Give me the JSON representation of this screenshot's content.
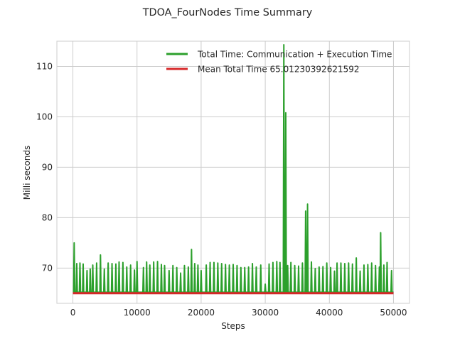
{
  "chart_data": {
    "type": "line",
    "title": "TDOA_FourNodes Time Summary",
    "xlabel": "Steps",
    "ylabel": "Milli seconds",
    "xlim": [
      -2500,
      52500
    ],
    "ylim": [
      63,
      115
    ],
    "x_ticks": [
      0,
      10000,
      20000,
      30000,
      40000,
      50000
    ],
    "y_ticks": [
      70,
      80,
      90,
      100,
      110
    ],
    "grid": true,
    "legend_position": "top-right",
    "series": [
      {
        "name": "Total Time: Communication + Execution Time",
        "color": "#2ca02c",
        "baseline": 65.2,
        "x": [
          0,
          50000
        ],
        "spikes": [
          {
            "x": 200,
            "y": 75.0
          },
          {
            "x": 600,
            "y": 70.9
          },
          {
            "x": 1100,
            "y": 71.0
          },
          {
            "x": 1600,
            "y": 70.8
          },
          {
            "x": 2200,
            "y": 69.5
          },
          {
            "x": 2700,
            "y": 69.8
          },
          {
            "x": 3100,
            "y": 70.6
          },
          {
            "x": 3700,
            "y": 71.0
          },
          {
            "x": 4300,
            "y": 72.6
          },
          {
            "x": 4900,
            "y": 69.8
          },
          {
            "x": 5500,
            "y": 71.0
          },
          {
            "x": 6100,
            "y": 70.9
          },
          {
            "x": 6700,
            "y": 70.8
          },
          {
            "x": 7200,
            "y": 71.2
          },
          {
            "x": 7800,
            "y": 71.1
          },
          {
            "x": 8400,
            "y": 70.2
          },
          {
            "x": 9000,
            "y": 70.6
          },
          {
            "x": 9600,
            "y": 69.6
          },
          {
            "x": 10000,
            "y": 71.3
          },
          {
            "x": 11000,
            "y": 70.1
          },
          {
            "x": 11500,
            "y": 71.2
          },
          {
            "x": 12000,
            "y": 70.6
          },
          {
            "x": 12600,
            "y": 71.2
          },
          {
            "x": 13200,
            "y": 71.3
          },
          {
            "x": 13800,
            "y": 70.7
          },
          {
            "x": 14300,
            "y": 70.5
          },
          {
            "x": 15000,
            "y": 69.5
          },
          {
            "x": 15600,
            "y": 70.5
          },
          {
            "x": 16200,
            "y": 70.1
          },
          {
            "x": 16800,
            "y": 69.0
          },
          {
            "x": 17400,
            "y": 70.5
          },
          {
            "x": 18000,
            "y": 70.2
          },
          {
            "x": 18500,
            "y": 73.7
          },
          {
            "x": 19000,
            "y": 70.9
          },
          {
            "x": 19500,
            "y": 70.6
          },
          {
            "x": 20000,
            "y": 69.5
          },
          {
            "x": 20800,
            "y": 70.6
          },
          {
            "x": 21400,
            "y": 71.1
          },
          {
            "x": 22000,
            "y": 71.1
          },
          {
            "x": 22600,
            "y": 71.0
          },
          {
            "x": 23200,
            "y": 70.9
          },
          {
            "x": 23800,
            "y": 70.7
          },
          {
            "x": 24400,
            "y": 70.6
          },
          {
            "x": 25000,
            "y": 70.7
          },
          {
            "x": 25600,
            "y": 70.5
          },
          {
            "x": 26200,
            "y": 70.1
          },
          {
            "x": 26800,
            "y": 70.1
          },
          {
            "x": 27400,
            "y": 70.2
          },
          {
            "x": 28000,
            "y": 70.9
          },
          {
            "x": 28600,
            "y": 70.2
          },
          {
            "x": 29300,
            "y": 70.6
          },
          {
            "x": 30000,
            "y": 66.8
          },
          {
            "x": 30600,
            "y": 70.8
          },
          {
            "x": 31200,
            "y": 71.1
          },
          {
            "x": 31800,
            "y": 71.3
          },
          {
            "x": 32300,
            "y": 71.1
          },
          {
            "x": 32900,
            "y": 114.3
          },
          {
            "x": 33200,
            "y": 100.8
          },
          {
            "x": 33500,
            "y": 70.5
          },
          {
            "x": 34000,
            "y": 71.1
          },
          {
            "x": 34600,
            "y": 70.5
          },
          {
            "x": 35200,
            "y": 70.4
          },
          {
            "x": 35800,
            "y": 71.0
          },
          {
            "x": 36300,
            "y": 81.3
          },
          {
            "x": 36600,
            "y": 82.7
          },
          {
            "x": 37200,
            "y": 71.2
          },
          {
            "x": 37800,
            "y": 69.9
          },
          {
            "x": 38400,
            "y": 70.2
          },
          {
            "x": 39000,
            "y": 70.3
          },
          {
            "x": 39600,
            "y": 71.0
          },
          {
            "x": 40200,
            "y": 70.1
          },
          {
            "x": 40800,
            "y": 69.4
          },
          {
            "x": 41200,
            "y": 71.0
          },
          {
            "x": 41800,
            "y": 71.0
          },
          {
            "x": 42400,
            "y": 70.9
          },
          {
            "x": 43000,
            "y": 71.0
          },
          {
            "x": 43600,
            "y": 70.8
          },
          {
            "x": 44200,
            "y": 72.0
          },
          {
            "x": 44800,
            "y": 69.4
          },
          {
            "x": 45400,
            "y": 70.6
          },
          {
            "x": 46000,
            "y": 70.7
          },
          {
            "x": 46600,
            "y": 71.0
          },
          {
            "x": 47200,
            "y": 70.5
          },
          {
            "x": 47800,
            "y": 70.2
          },
          {
            "x": 48000,
            "y": 77.0
          },
          {
            "x": 48500,
            "y": 70.6
          },
          {
            "x": 49000,
            "y": 71.1
          },
          {
            "x": 49700,
            "y": 69.5
          }
        ]
      },
      {
        "name": "Mean Total Time 65.01230392621592",
        "color": "#d62728",
        "x": [
          0,
          50000
        ],
        "y": [
          65.01230392621592,
          65.01230392621592
        ]
      }
    ]
  }
}
